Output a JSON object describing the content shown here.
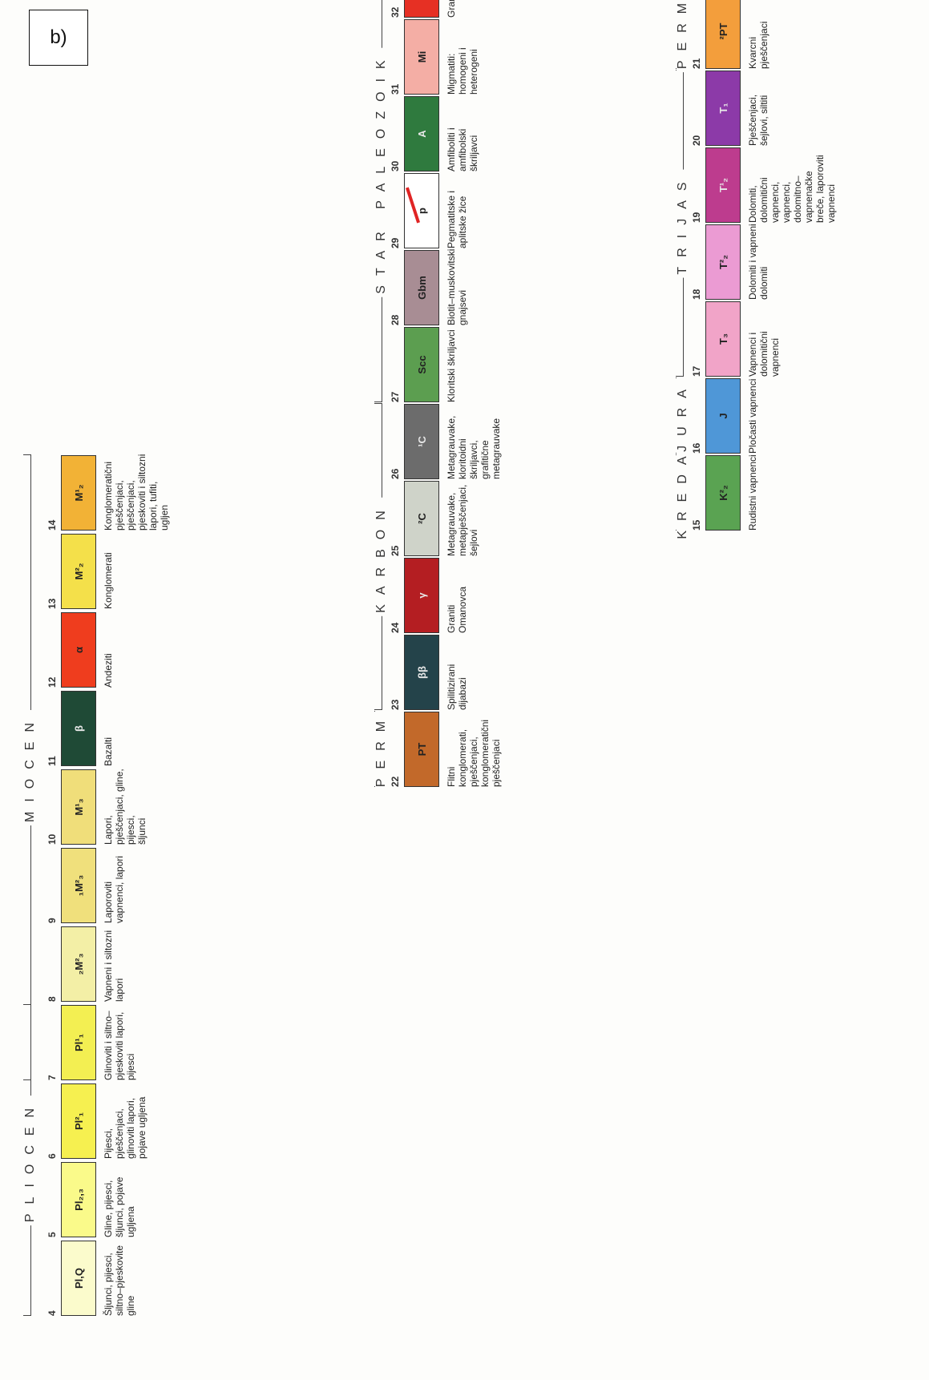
{
  "panel_label": "b)",
  "columns": [
    {
      "entries": [
        {
          "num": "4",
          "code": "Pl,Q",
          "color": "#fbfbcc",
          "text": "Šljunci, pijesci, siltno–pjeskovite\ngline"
        },
        {
          "num": "5",
          "code": "Pl₂,₃",
          "color": "#fafa8a",
          "text": "Gline, pijesci, šljunci, pojave ugljena"
        },
        {
          "num": "6",
          "code": "Pl²₁",
          "color": "#f6f050",
          "text": "Pijesci, pješčenjaci, glinoviti lapori,\npojave ugljena"
        },
        {
          "num": "7",
          "code": "Pl¹₁",
          "color": "#f3ef52",
          "text": "Glinoviti i siltno–pjeskoviti lapori,\npijesci"
        },
        {
          "num": "8",
          "code": "₂M²₃",
          "color": "#f3efa6",
          "text": "Vapneni i siltozni lapori"
        },
        {
          "num": "9",
          "code": "₁M²₃",
          "color": "#f0e07c",
          "text": "Laporoviti vapnenci, lapori"
        },
        {
          "num": "10",
          "code": "M¹₃",
          "color": "#f0de7a",
          "text": "Lapori, pješčenjaci, gline, pijesci,\nšljunci"
        },
        {
          "num": "11",
          "code": "β",
          "color": "#1f4a36",
          "text": "Bazalti"
        },
        {
          "num": "12",
          "code": "α",
          "color": "#ef3d1e",
          "text": "Andeziti"
        },
        {
          "num": "13",
          "code": "M²₂",
          "color": "#f4e04a",
          "text": "Konglomerati"
        },
        {
          "num": "14",
          "code": "M¹₂",
          "color": "#f2b236",
          "text": "Konglomeratični pješčenjaci,\npješčenjaci, pjeskoviti i siltozni\nlapori, tufiti, ugljen"
        }
      ],
      "eras": [
        {
          "label": "PLIOCEN",
          "from": "4",
          "to": "7"
        },
        {
          "label": "MIOCEN",
          "from": "7",
          "to": "14"
        }
      ]
    },
    {
      "entries": [
        {
          "num": "22",
          "code": "PT",
          "color": "#c2692a",
          "text": "Flitni konglomerati, pješčenjaci,\nkonglomeratični pješčenjaci"
        },
        {
          "num": "23",
          "code": "ββ",
          "color": "#24434a",
          "text": "Spilitizirani dijabazi"
        },
        {
          "num": "24",
          "code": "γ",
          "color": "#b41e22",
          "text": "Graniti Omanovca"
        },
        {
          "num": "25",
          "code": "²C",
          "color": "#cfd3c9",
          "text": "Metagrauvake, metapješčenjaci,\nšejlovi"
        },
        {
          "num": "26",
          "code": "¹C",
          "color": "#6c6c6c",
          "text": "Metagrauvake, kloritoidni škriljavci,\ngrafitične metagrauvake"
        },
        {
          "num": "27",
          "code": "Scc",
          "color": "#5c9e50",
          "text": "Kloritski škriljavci"
        },
        {
          "num": "28",
          "code": "Gbm",
          "color": "#a88d94",
          "text": "Biotit–muskovitski gnajsevi"
        },
        {
          "num": "29",
          "code": "p",
          "color": "#ffffff",
          "text": "Pegmatitske i aplitske žice"
        },
        {
          "num": "30",
          "code": "A",
          "color": "#2f7a3e",
          "text": "Amfiboliti i amfibolski škriljavci"
        },
        {
          "num": "31",
          "code": "Mi",
          "color": "#f4aea5",
          "text": "Migmatiti: homogeni i heterogeni"
        },
        {
          "num": "32",
          "code": "G",
          "color": "#e63024",
          "text": "Granitoidi"
        }
      ],
      "eras": [
        {
          "label": "PERM",
          "from": "22",
          "to": "22"
        },
        {
          "label": "KARBON",
          "from": "23",
          "to": "26"
        },
        {
          "label": "STAR PALEOZOIK",
          "from": "27",
          "to": "32"
        }
      ]
    },
    {
      "entries": [
        {
          "num": "15",
          "code": "K²₂",
          "color": "#5aa352",
          "text": "Rudistni vapnenci"
        },
        {
          "num": "16",
          "code": "J",
          "color": "#4f97d7",
          "text": "Pločasti vapnenci"
        },
        {
          "num": "17",
          "code": "T₃",
          "color": "#f1a4c8",
          "text": "Vapnenci i dolomitični vapnenci"
        },
        {
          "num": "18",
          "code": "T²₂",
          "color": "#eb9bd3",
          "text": "Dolomiti i vapneni dolomiti"
        },
        {
          "num": "19",
          "code": "T¹₂",
          "color": "#bd3c8e",
          "text": "Dolomiti, dolomitični vapnenci,\nvapnenci, dolomitno–vapnenačke\nbreče, laporoviti vapnenci"
        },
        {
          "num": "20",
          "code": "T₁",
          "color": "#8c3aa8",
          "text": "Pješčenjaci, šejlovi, siltiti"
        },
        {
          "num": "21",
          "code": "²PT",
          "color": "#f39e3c",
          "text": "Kvarcni pješčenjaci"
        }
      ],
      "eras": [
        {
          "label": "KREDA",
          "from": "15",
          "to": "15"
        },
        {
          "label": "JURA",
          "from": "16",
          "to": "16"
        },
        {
          "label": "TRIJAS",
          "from": "17",
          "to": "20"
        },
        {
          "label": "PERM",
          "from": "21",
          "to": "21"
        }
      ]
    }
  ]
}
